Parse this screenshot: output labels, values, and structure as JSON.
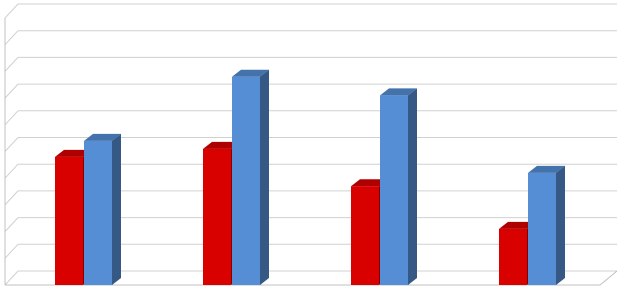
{
  "chart_data": {
    "type": "bar3d",
    "categories": [
      null,
      null,
      null,
      null
    ],
    "series": [
      {
        "color": "#d90000",
        "values": [
          4.8,
          5.1,
          3.7,
          2.1
        ]
      },
      {
        "color": "#558ed5",
        "values": [
          5.4,
          7.8,
          7.1,
          4.2
        ]
      }
    ],
    "ylim": [
      0,
      10
    ],
    "yticks": [
      0,
      1,
      2,
      3,
      4,
      5,
      6,
      7,
      8,
      9,
      10
    ],
    "grid": true
  }
}
